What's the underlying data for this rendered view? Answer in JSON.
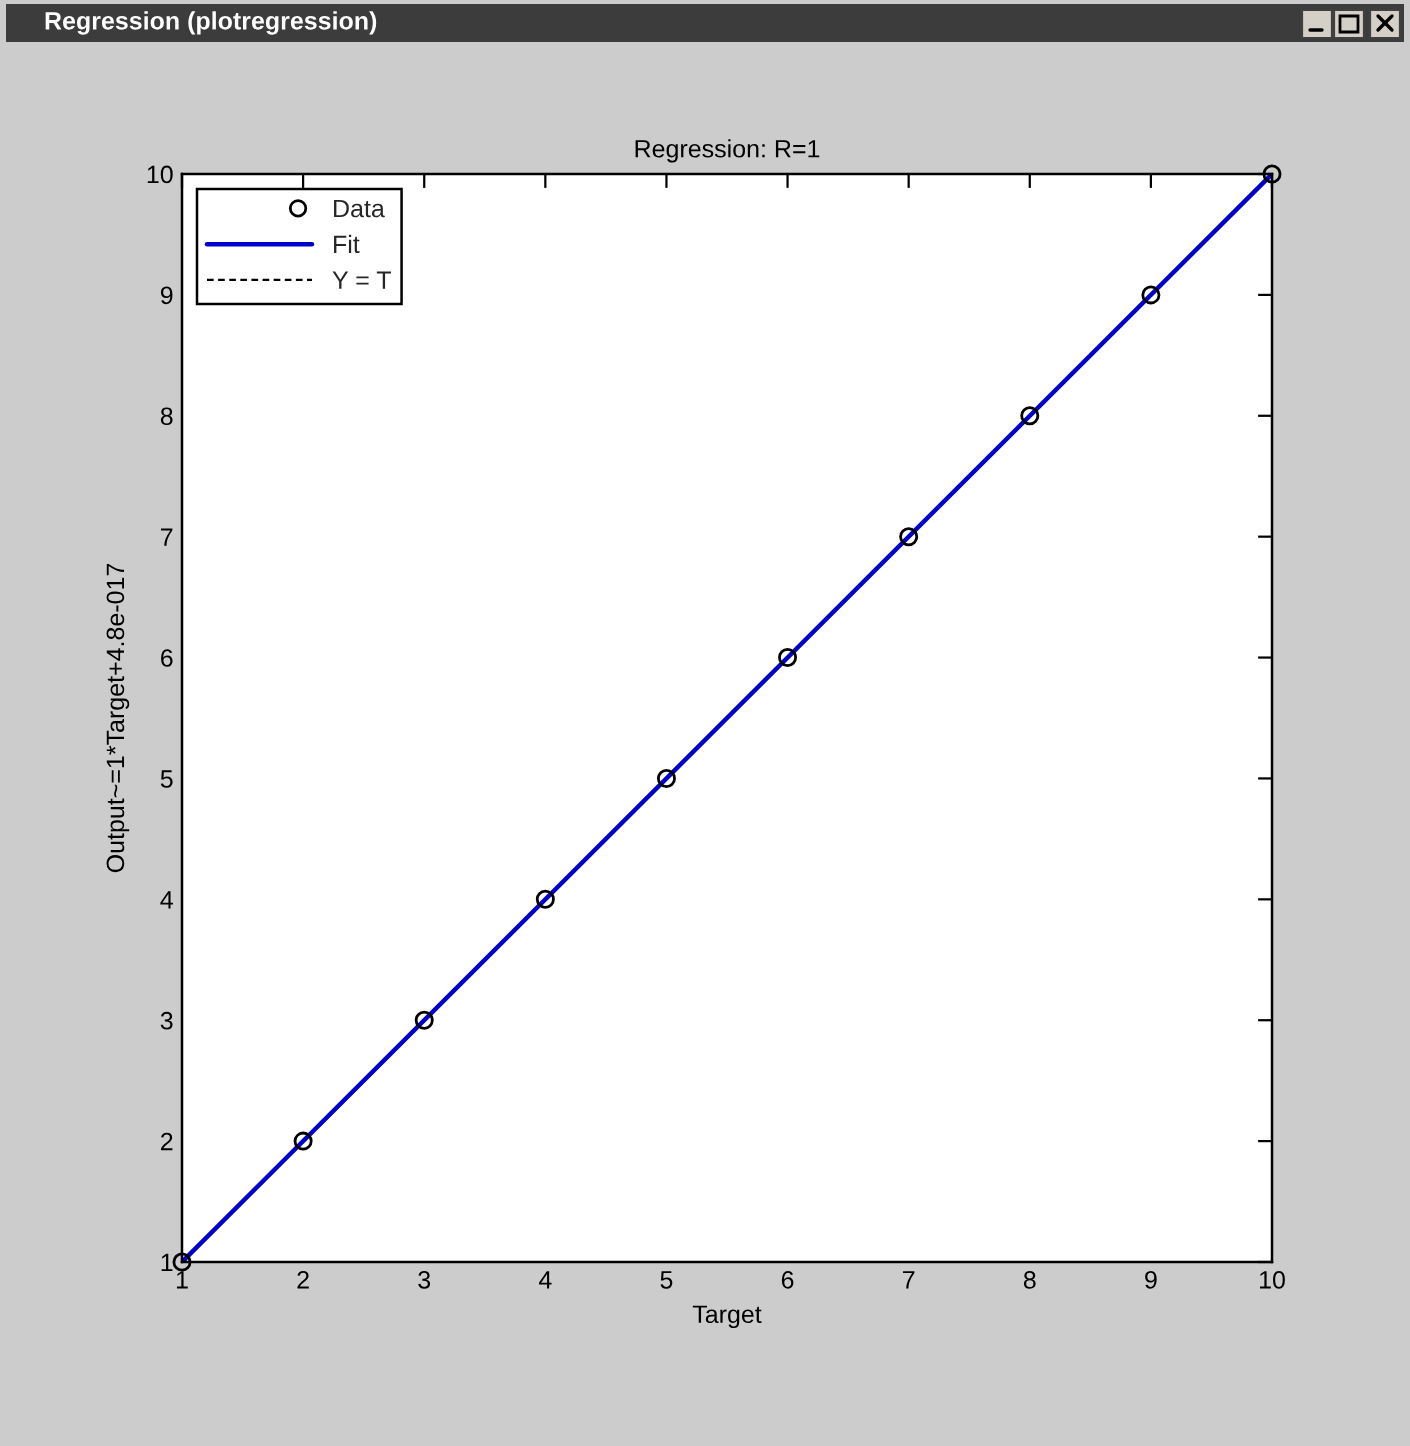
{
  "chart_data": {
    "type": "scatter",
    "title": "Regression: R=1",
    "xlabel": "Target",
    "ylabel": "Output~=1*Target+4.8e-017",
    "annotations": [
      "Regression (plotregression)"
    ],
    "x": [
      1,
      2,
      3,
      4,
      5,
      6,
      7,
      8,
      9,
      10
    ],
    "series": [
      {
        "name": "Data",
        "color": "#000000",
        "marker": "circle",
        "values": [
          1,
          2,
          3,
          4,
          5,
          6,
          7,
          8,
          9,
          10
        ]
      },
      {
        "name": "Fit",
        "type": "line",
        "color": "#0000cc",
        "marker": "none",
        "line_style": "solid",
        "x": [
          1,
          10
        ],
        "values": [
          1,
          10
        ]
      },
      {
        "name": "Y = T",
        "type": "line",
        "color": "#000000",
        "marker": "none",
        "line_style": "dashed",
        "values": [
          null,
          null,
          null,
          null,
          null,
          null,
          null,
          null,
          null,
          null
        ]
      }
    ],
    "xlim": [
      1,
      10
    ],
    "ylim": [
      1,
      10
    ],
    "xticks": [
      1,
      2,
      3,
      4,
      5,
      6,
      7,
      8,
      9,
      10
    ],
    "yticks": [
      1,
      2,
      3,
      4,
      5,
      6,
      7,
      8,
      9,
      10
    ],
    "grid": false,
    "legend": "top left"
  }
}
